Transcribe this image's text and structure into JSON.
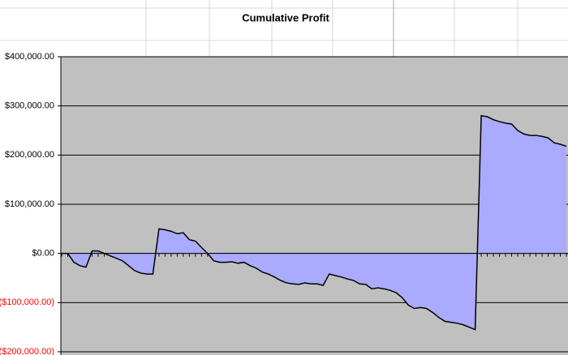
{
  "chart_data": {
    "type": "area",
    "title": "Cumulative Profit",
    "color": "#aaaaff",
    "line_color": "#000000",
    "plot_background": "#c0c0c0",
    "negative_tick_color": "#ff0000",
    "ylim": [
      -200000,
      400000
    ],
    "yticks": [
      {
        "value": -200000,
        "label": "($200,000.00)"
      },
      {
        "value": -100000,
        "label": "($100,000.00)"
      },
      {
        "value": 0,
        "label": "$0.00"
      },
      {
        "value": 100000,
        "label": "$100,000.00"
      },
      {
        "value": 200000,
        "label": "$200,000.00"
      },
      {
        "value": 300000,
        "label": "$300,000.00"
      },
      {
        "value": 400000,
        "label": "$400,000.00"
      }
    ],
    "grid": true,
    "values": [
      0,
      0,
      -18000,
      -25000,
      -28000,
      5000,
      5000,
      0,
      -5000,
      -10000,
      -15000,
      -25000,
      -35000,
      -40000,
      -42000,
      -42000,
      50000,
      48000,
      45000,
      40000,
      42000,
      28000,
      25000,
      12000,
      0,
      -15000,
      -18000,
      -18000,
      -17000,
      -20000,
      -18000,
      -25000,
      -30000,
      -38000,
      -42000,
      -48000,
      -55000,
      -60000,
      -62000,
      -63000,
      -60000,
      -62000,
      -62000,
      -65000,
      -42000,
      -45000,
      -48000,
      -52000,
      -55000,
      -62000,
      -63000,
      -72000,
      -70000,
      -72000,
      -75000,
      -80000,
      -90000,
      -105000,
      -112000,
      -110000,
      -112000,
      -120000,
      -130000,
      -138000,
      -140000,
      -142000,
      -145000,
      -150000,
      -155000,
      280000,
      278000,
      272000,
      268000,
      265000,
      263000,
      250000,
      243000,
      240000,
      240000,
      238000,
      235000,
      225000,
      222000,
      218000
    ]
  }
}
